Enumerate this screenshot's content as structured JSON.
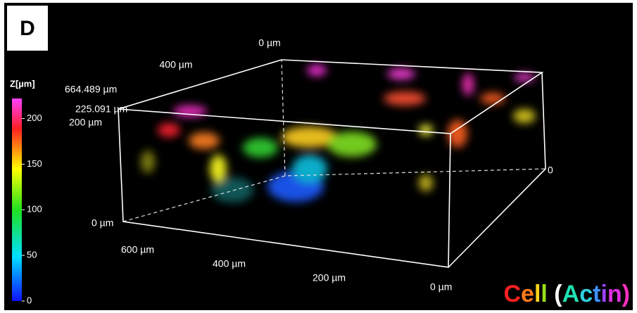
{
  "panel_label": "D",
  "axis_labels": {
    "top_back": "0 µm",
    "top_left": "400 µm",
    "depth_max": "664.489 µm",
    "height_max": "225.091 µm",
    "height_200": "200 µm",
    "left_zero": "0 µm",
    "front_600": "600 µm",
    "front_400": "400 µm",
    "front_200": "200 µm",
    "front_zero": "0 µm",
    "right_zero": "0"
  },
  "colorbar": {
    "label": "Z[µm]",
    "lim": [
      0,
      222
    ],
    "ticks": [
      0,
      50,
      100,
      150,
      200
    ]
  },
  "caption": {
    "text": "Cell (Actin)",
    "colors": [
      "#ff2020",
      "#ff7a1a",
      "#ffd21a",
      "#9adf1a",
      "#ffffff",
      "#ffffff",
      "#20e0b0",
      "#30d0e0",
      "#4090ff",
      "#a040ff",
      "#e030e0",
      "#ff30c0"
    ]
  }
}
